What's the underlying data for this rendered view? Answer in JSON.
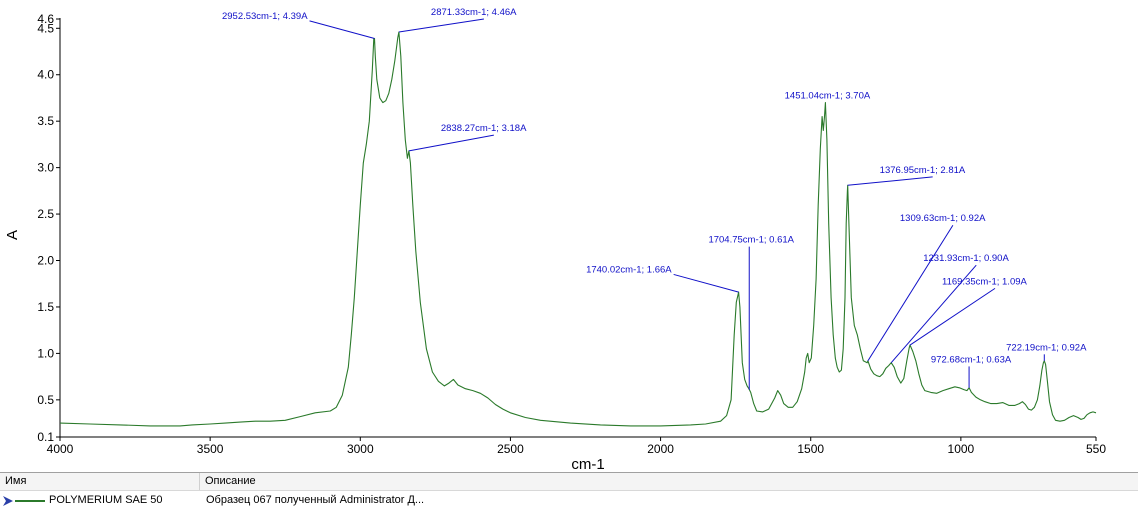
{
  "chart_data": {
    "type": "line",
    "xlabel": "cm-1",
    "ylabel": "A",
    "xlim": [
      4000,
      550
    ],
    "ylim": [
      0.1,
      4.6
    ],
    "x_reversed": true,
    "grid": false,
    "x_ticks": [
      {
        "value": 4000,
        "label": "4000"
      },
      {
        "value": 3500,
        "label": "3500"
      },
      {
        "value": 3000,
        "label": "3000"
      },
      {
        "value": 2500,
        "label": "2500"
      },
      {
        "value": 2000,
        "label": "2000"
      },
      {
        "value": 1500,
        "label": "1500"
      },
      {
        "value": 1000,
        "label": "1000"
      },
      {
        "value": 550,
        "label": "550"
      }
    ],
    "y_ticks": [
      {
        "value": 0.1,
        "label": "0.1"
      },
      {
        "value": 0.5,
        "label": "0.5"
      },
      {
        "value": 1.0,
        "label": "1.0"
      },
      {
        "value": 1.5,
        "label": "1.5"
      },
      {
        "value": 2.0,
        "label": "2.0"
      },
      {
        "value": 2.5,
        "label": "2.5"
      },
      {
        "value": 3.0,
        "label": "3.0"
      },
      {
        "value": 3.5,
        "label": "3.5"
      },
      {
        "value": 4.0,
        "label": "4.0"
      },
      {
        "value": 4.5,
        "label": "4.5"
      },
      {
        "value": 4.6,
        "label": "4.6"
      }
    ],
    "series": [
      {
        "name": "POLYMERIUM SAE 50",
        "color": "#2b7a2b",
        "points": [
          [
            4000,
            0.25
          ],
          [
            3900,
            0.24
          ],
          [
            3800,
            0.23
          ],
          [
            3700,
            0.22
          ],
          [
            3600,
            0.22
          ],
          [
            3560,
            0.23
          ],
          [
            3500,
            0.24
          ],
          [
            3450,
            0.25
          ],
          [
            3400,
            0.26
          ],
          [
            3350,
            0.27
          ],
          [
            3300,
            0.27
          ],
          [
            3250,
            0.28
          ],
          [
            3200,
            0.32
          ],
          [
            3150,
            0.36
          ],
          [
            3100,
            0.38
          ],
          [
            3080,
            0.42
          ],
          [
            3060,
            0.55
          ],
          [
            3040,
            0.85
          ],
          [
            3030,
            1.2
          ],
          [
            3020,
            1.6
          ],
          [
            3010,
            2.1
          ],
          [
            3000,
            2.6
          ],
          [
            2990,
            3.05
          ],
          [
            2980,
            3.25
          ],
          [
            2970,
            3.5
          ],
          [
            2960,
            4.05
          ],
          [
            2955,
            4.39
          ],
          [
            2952.53,
            4.39
          ],
          [
            2950,
            4.2
          ],
          [
            2945,
            3.95
          ],
          [
            2935,
            3.75
          ],
          [
            2925,
            3.7
          ],
          [
            2915,
            3.72
          ],
          [
            2905,
            3.8
          ],
          [
            2895,
            3.95
          ],
          [
            2885,
            4.15
          ],
          [
            2875,
            4.4
          ],
          [
            2871.33,
            4.46
          ],
          [
            2865,
            4.2
          ],
          [
            2858,
            3.7
          ],
          [
            2850,
            3.3
          ],
          [
            2843,
            3.1
          ],
          [
            2838.27,
            3.18
          ],
          [
            2833,
            3.05
          ],
          [
            2825,
            2.6
          ],
          [
            2815,
            2.1
          ],
          [
            2800,
            1.55
          ],
          [
            2780,
            1.05
          ],
          [
            2760,
            0.8
          ],
          [
            2740,
            0.7
          ],
          [
            2720,
            0.65
          ],
          [
            2705,
            0.68
          ],
          [
            2690,
            0.72
          ],
          [
            2675,
            0.66
          ],
          [
            2650,
            0.62
          ],
          [
            2625,
            0.6
          ],
          [
            2600,
            0.57
          ],
          [
            2575,
            0.52
          ],
          [
            2550,
            0.45
          ],
          [
            2525,
            0.4
          ],
          [
            2500,
            0.36
          ],
          [
            2450,
            0.31
          ],
          [
            2400,
            0.28
          ],
          [
            2300,
            0.25
          ],
          [
            2200,
            0.23
          ],
          [
            2100,
            0.22
          ],
          [
            2000,
            0.22
          ],
          [
            1900,
            0.23
          ],
          [
            1850,
            0.24
          ],
          [
            1800,
            0.27
          ],
          [
            1780,
            0.33
          ],
          [
            1765,
            0.5
          ],
          [
            1755,
            1.2
          ],
          [
            1748,
            1.55
          ],
          [
            1743,
            1.62
          ],
          [
            1740.02,
            1.66
          ],
          [
            1736,
            1.5
          ],
          [
            1728,
            0.9
          ],
          [
            1720,
            0.72
          ],
          [
            1712,
            0.65
          ],
          [
            1706,
            0.62
          ],
          [
            1700,
            0.58
          ],
          [
            1690,
            0.46
          ],
          [
            1680,
            0.38
          ],
          [
            1660,
            0.37
          ],
          [
            1640,
            0.4
          ],
          [
            1620,
            0.52
          ],
          [
            1610,
            0.6
          ],
          [
            1600,
            0.55
          ],
          [
            1590,
            0.46
          ],
          [
            1575,
            0.42
          ],
          [
            1560,
            0.42
          ],
          [
            1545,
            0.48
          ],
          [
            1530,
            0.62
          ],
          [
            1520,
            0.8
          ],
          [
            1515,
            0.95
          ],
          [
            1510,
            1.0
          ],
          [
            1505,
            0.9
          ],
          [
            1498,
            0.95
          ],
          [
            1490,
            1.3
          ],
          [
            1482,
            1.8
          ],
          [
            1475,
            2.6
          ],
          [
            1468,
            3.2
          ],
          [
            1462,
            3.55
          ],
          [
            1458,
            3.4
          ],
          [
            1454,
            3.55
          ],
          [
            1451.04,
            3.7
          ],
          [
            1446,
            3.3
          ],
          [
            1440,
            2.4
          ],
          [
            1432,
            1.6
          ],
          [
            1425,
            1.2
          ],
          [
            1418,
            0.95
          ],
          [
            1412,
            0.85
          ],
          [
            1405,
            0.8
          ],
          [
            1398,
            0.82
          ],
          [
            1392,
            1.05
          ],
          [
            1386,
            1.6
          ],
          [
            1382,
            2.4
          ],
          [
            1378,
            2.75
          ],
          [
            1376.95,
            2.81
          ],
          [
            1372,
            2.3
          ],
          [
            1365,
            1.6
          ],
          [
            1355,
            1.3
          ],
          [
            1345,
            1.2
          ],
          [
            1335,
            1.05
          ],
          [
            1325,
            0.92
          ],
          [
            1312,
            0.9
          ],
          [
            1309.63,
            0.92
          ],
          [
            1300,
            0.83
          ],
          [
            1290,
            0.78
          ],
          [
            1280,
            0.76
          ],
          [
            1270,
            0.75
          ],
          [
            1260,
            0.78
          ],
          [
            1250,
            0.84
          ],
          [
            1240,
            0.87
          ],
          [
            1231.93,
            0.9
          ],
          [
            1222,
            0.85
          ],
          [
            1212,
            0.75
          ],
          [
            1200,
            0.68
          ],
          [
            1190,
            0.73
          ],
          [
            1180,
            0.92
          ],
          [
            1172,
            1.06
          ],
          [
            1169.35,
            1.09
          ],
          [
            1160,
            1.02
          ],
          [
            1150,
            0.92
          ],
          [
            1140,
            0.78
          ],
          [
            1130,
            0.66
          ],
          [
            1120,
            0.6
          ],
          [
            1100,
            0.58
          ],
          [
            1080,
            0.57
          ],
          [
            1060,
            0.6
          ],
          [
            1040,
            0.62
          ],
          [
            1020,
            0.64
          ],
          [
            1005,
            0.63
          ],
          [
            990,
            0.61
          ],
          [
            980,
            0.6
          ],
          [
            972.68,
            0.63
          ],
          [
            965,
            0.58
          ],
          [
            950,
            0.53
          ],
          [
            935,
            0.5
          ],
          [
            920,
            0.48
          ],
          [
            900,
            0.46
          ],
          [
            880,
            0.46
          ],
          [
            860,
            0.47
          ],
          [
            840,
            0.44
          ],
          [
            820,
            0.44
          ],
          [
            805,
            0.46
          ],
          [
            795,
            0.48
          ],
          [
            785,
            0.45
          ],
          [
            775,
            0.4
          ],
          [
            765,
            0.39
          ],
          [
            755,
            0.42
          ],
          [
            745,
            0.5
          ],
          [
            737,
            0.65
          ],
          [
            730,
            0.82
          ],
          [
            725,
            0.9
          ],
          [
            722.19,
            0.92
          ],
          [
            718,
            0.88
          ],
          [
            712,
            0.7
          ],
          [
            705,
            0.48
          ],
          [
            695,
            0.34
          ],
          [
            685,
            0.28
          ],
          [
            670,
            0.27
          ],
          [
            655,
            0.28
          ],
          [
            640,
            0.31
          ],
          [
            625,
            0.33
          ],
          [
            610,
            0.31
          ],
          [
            600,
            0.29
          ],
          [
            590,
            0.3
          ],
          [
            580,
            0.34
          ],
          [
            570,
            0.36
          ],
          [
            560,
            0.37
          ],
          [
            550,
            0.36
          ]
        ]
      }
    ],
    "annotations": [
      {
        "label": "2952.53cm-1; 4.39A",
        "x": 2952.53,
        "y": 4.39,
        "label_side": "left",
        "label_level": 4.58
      },
      {
        "label": "2871.33cm-1; 4.46A",
        "x": 2871.33,
        "y": 4.46,
        "label_side": "right",
        "label_level": 4.6
      },
      {
        "label": "2838.27cm-1; 3.18A",
        "x": 2838.27,
        "y": 3.18,
        "label_side": "right",
        "label_level": 3.35
      },
      {
        "label": "1740.02cm-1; 1.66A",
        "x": 1740.02,
        "y": 1.66,
        "label_side": "left",
        "label_level": 1.85
      },
      {
        "label": "1704.75cm-1; 0.61A",
        "x": 1704.75,
        "y": 0.61,
        "label_side": "up",
        "label_level": 2.15
      },
      {
        "label": "1451.04cm-1; 3.70A",
        "x": 1451.04,
        "y": 3.7,
        "label_side": "up",
        "label_level": 3.7
      },
      {
        "label": "1376.95cm-1; 2.81A",
        "x": 1376.95,
        "y": 2.81,
        "label_side": "right",
        "label_level": 2.9
      },
      {
        "label": "1309.63cm-1; 0.92A",
        "x": 1309.63,
        "y": 0.92,
        "label_side": "right",
        "label_level": 2.38
      },
      {
        "label": "1231.93cm-1; 0.90A",
        "x": 1231.93,
        "y": 0.9,
        "label_side": "right",
        "label_level": 1.95
      },
      {
        "label": "1169.35cm-1; 1.09A",
        "x": 1169.35,
        "y": 1.09,
        "label_side": "right",
        "label_level": 1.7
      },
      {
        "label": "972.68cm-1; 0.63A",
        "x": 972.68,
        "y": 0.63,
        "label_side": "up",
        "label_level": 0.86
      },
      {
        "label": "722.19cm-1; 0.92A",
        "x": 722.19,
        "y": 0.92,
        "label_side": "up",
        "label_level": 0.99
      }
    ]
  },
  "legend": {
    "col_name": "Имя",
    "col_desc": "Описание",
    "rows": [
      {
        "name": "POLYMERIUM SAE 50",
        "description": "Образец 067 полученный Administrator Д..."
      }
    ]
  },
  "colors": {
    "series": "#2b7a2b",
    "annotation": "#1010c8",
    "axis": "#000000"
  }
}
